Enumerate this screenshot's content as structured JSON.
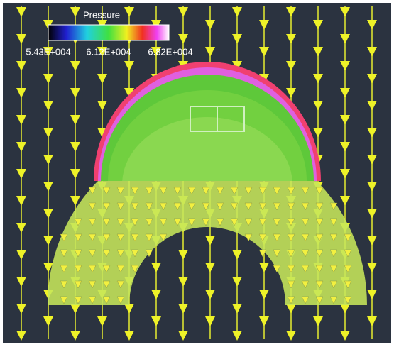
{
  "legend": {
    "title": "Pressure",
    "labels": [
      "5.43E+004",
      "6.12E+004",
      "6.82E+004"
    ]
  }
}
